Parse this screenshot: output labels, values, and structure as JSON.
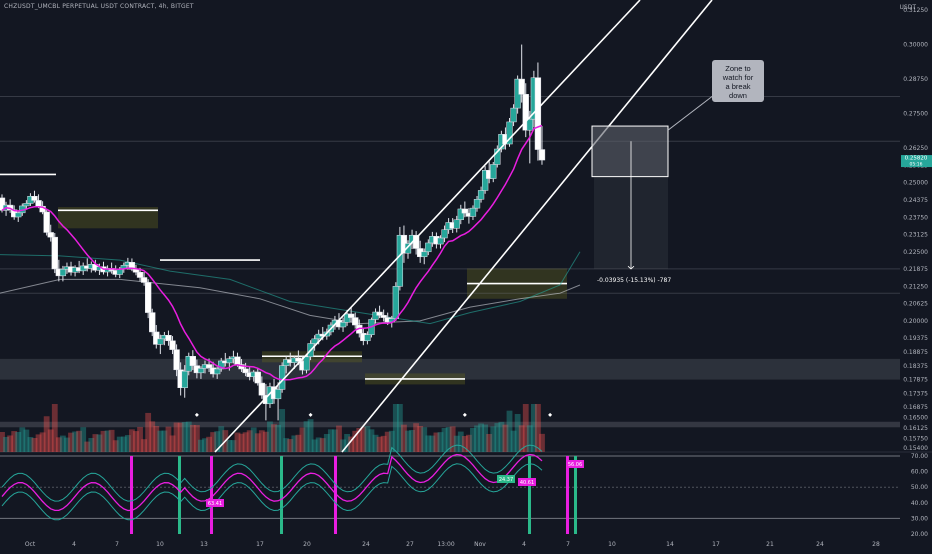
{
  "symbol_title": "CHZUSDT_UMCBL PERPETUAL USDT CONTRACT, 4h, BITGET",
  "currency": "USDT",
  "price_axis_labels": [
    "0.31250",
    "0.30000",
    "0.28750",
    "0.27500",
    "0.26250",
    "0.25625",
    "0.25000",
    "0.24375",
    "0.23750",
    "0.23125",
    "0.22500",
    "0.21875",
    "0.21250",
    "0.20625",
    "0.20000",
    "0.19375",
    "0.18875",
    "0.18375",
    "0.17875",
    "0.17375",
    "0.16875",
    "0.16500",
    "0.16125",
    "0.15750",
    "0.15400"
  ],
  "osc_axis_labels": [
    "70.00",
    "60.00",
    "50.00",
    "40.00",
    "30.00",
    "20.00"
  ],
  "time_axis_labels": [
    "Oct",
    "4",
    "7",
    "10",
    "13",
    "17",
    "20",
    "24",
    "27",
    "13:00",
    "Nov",
    "4",
    "7",
    "10",
    "14",
    "17",
    "21",
    "24",
    "28"
  ],
  "last_price": "0.25820",
  "last_price_sub": "05:16",
  "annotation_text": [
    "Zone to",
    "watch for",
    "a break",
    "down"
  ],
  "measure_label": "-0.03935 (-15.13%) -787",
  "osc_tags": [
    "63.41",
    "24.37",
    "40.61",
    "56.06"
  ],
  "colors": {
    "up": "#26a69a",
    "down": "#ef5350",
    "wick": "#e0e3eb",
    "ma": "#e91ee0",
    "rsi": "#e91ee0",
    "band": "#26a69a",
    "signal_pink": "#e91ee0",
    "signal_green": "#2bb98a"
  },
  "chart_data": {
    "type": "candlestick",
    "price_ylim": [
      0.154,
      0.3125
    ],
    "osc_ylim": [
      20,
      70
    ],
    "osc_lines": [
      70,
      50,
      30
    ],
    "notable": {
      "last_price": 0.2582,
      "target_price": 0.21875,
      "peak": 0.3,
      "support_band": [
        0.17875,
        0.18625
      ]
    },
    "x_range": [
      0,
      150
    ],
    "candles": [
      [
        0.2445,
        0.2458,
        0.2392,
        0.24
      ],
      [
        0.24,
        0.2431,
        0.238,
        0.2419
      ],
      [
        0.2419,
        0.244,
        0.2391,
        0.2402
      ],
      [
        0.2402,
        0.2418,
        0.2366,
        0.2376
      ],
      [
        0.2376,
        0.24,
        0.2358,
        0.2391
      ],
      [
        0.2391,
        0.2425,
        0.238,
        0.2416
      ],
      [
        0.2416,
        0.2437,
        0.2405,
        0.2425
      ],
      [
        0.2425,
        0.2462,
        0.2416,
        0.2451
      ],
      [
        0.2451,
        0.2471,
        0.2428,
        0.2436
      ],
      [
        0.2436,
        0.2458,
        0.2408,
        0.2415
      ],
      [
        0.2415,
        0.2433,
        0.2386,
        0.2394
      ],
      [
        0.2394,
        0.2405,
        0.2309,
        0.232
      ],
      [
        0.232,
        0.2348,
        0.2287,
        0.2303
      ],
      [
        0.2303,
        0.2318,
        0.2173,
        0.2188
      ],
      [
        0.2188,
        0.2221,
        0.2143,
        0.2163
      ],
      [
        0.2163,
        0.2199,
        0.2143,
        0.2187
      ],
      [
        0.2187,
        0.2211,
        0.217,
        0.2196
      ],
      [
        0.2196,
        0.2214,
        0.2164,
        0.2176
      ],
      [
        0.2176,
        0.2201,
        0.2161,
        0.2193
      ],
      [
        0.2193,
        0.2217,
        0.2173,
        0.2181
      ],
      [
        0.2181,
        0.2211,
        0.2166,
        0.2199
      ],
      [
        0.2199,
        0.2226,
        0.2179,
        0.219
      ],
      [
        0.219,
        0.2215,
        0.2175,
        0.2205
      ],
      [
        0.2205,
        0.2221,
        0.2176,
        0.2183
      ],
      [
        0.2183,
        0.2207,
        0.2166,
        0.2196
      ],
      [
        0.2196,
        0.2214,
        0.2168,
        0.2177
      ],
      [
        0.2177,
        0.2201,
        0.2161,
        0.219
      ],
      [
        0.219,
        0.2211,
        0.2171,
        0.2182
      ],
      [
        0.2182,
        0.2201,
        0.2158,
        0.2168
      ],
      [
        0.2168,
        0.2195,
        0.2155,
        0.2188
      ],
      [
        0.2188,
        0.2211,
        0.2174,
        0.2201
      ],
      [
        0.2201,
        0.2228,
        0.2185,
        0.2212
      ],
      [
        0.2212,
        0.2226,
        0.218,
        0.2187
      ],
      [
        0.2187,
        0.2203,
        0.2165,
        0.2176
      ],
      [
        0.2176,
        0.2192,
        0.2143,
        0.2157
      ],
      [
        0.2157,
        0.2177,
        0.2127,
        0.2139
      ],
      [
        0.2139,
        0.2151,
        0.201,
        0.203
      ],
      [
        0.203,
        0.2044,
        0.1945,
        0.196
      ],
      [
        0.196,
        0.1985,
        0.19,
        0.1915
      ],
      [
        0.1915,
        0.195,
        0.188,
        0.1935
      ],
      [
        0.1935,
        0.196,
        0.1912,
        0.1948
      ],
      [
        0.1948,
        0.1965,
        0.191,
        0.1928
      ],
      [
        0.1928,
        0.1945,
        0.188,
        0.1896
      ],
      [
        0.1896,
        0.1915,
        0.18,
        0.1823
      ],
      [
        0.1823,
        0.185,
        0.173,
        0.1758
      ],
      [
        0.1758,
        0.184,
        0.1722,
        0.1818
      ],
      [
        0.1818,
        0.1885,
        0.1803,
        0.1872
      ],
      [
        0.1872,
        0.1894,
        0.1822,
        0.1838
      ],
      [
        0.1838,
        0.186,
        0.1792,
        0.1812
      ],
      [
        0.1812,
        0.1836,
        0.179,
        0.1828
      ],
      [
        0.1828,
        0.1856,
        0.181,
        0.1842
      ],
      [
        0.1842,
        0.1864,
        0.1815,
        0.183
      ],
      [
        0.183,
        0.1852,
        0.1795,
        0.1808
      ],
      [
        0.1808,
        0.1834,
        0.179,
        0.1826
      ],
      [
        0.1826,
        0.1866,
        0.1816,
        0.1855
      ],
      [
        0.1855,
        0.1884,
        0.1835,
        0.1848
      ],
      [
        0.1848,
        0.1872,
        0.182,
        0.1863
      ],
      [
        0.1863,
        0.1892,
        0.1846,
        0.187
      ],
      [
        0.187,
        0.1885,
        0.1834,
        0.1842
      ],
      [
        0.1842,
        0.1862,
        0.1815,
        0.1826
      ],
      [
        0.1826,
        0.1848,
        0.18,
        0.1812
      ],
      [
        0.1812,
        0.1832,
        0.1785,
        0.1798
      ],
      [
        0.1798,
        0.1822,
        0.178,
        0.1815
      ],
      [
        0.1815,
        0.183,
        0.1766,
        0.1775
      ],
      [
        0.1775,
        0.1799,
        0.1718,
        0.1731
      ],
      [
        0.1731,
        0.1772,
        0.164,
        0.17
      ],
      [
        0.17,
        0.1776,
        0.1685,
        0.1762
      ],
      [
        0.1762,
        0.179,
        0.17,
        0.1718
      ],
      [
        0.1718,
        0.1778,
        0.164,
        0.1752
      ],
      [
        0.1752,
        0.185,
        0.174,
        0.1838
      ],
      [
        0.1838,
        0.1872,
        0.181,
        0.186
      ],
      [
        0.186,
        0.1885,
        0.1835,
        0.1849
      ],
      [
        0.1849,
        0.1875,
        0.1826,
        0.1866
      ],
      [
        0.1866,
        0.1893,
        0.184,
        0.1854
      ],
      [
        0.1854,
        0.1872,
        0.1806,
        0.1822
      ],
      [
        0.1822,
        0.188,
        0.181,
        0.187
      ],
      [
        0.187,
        0.193,
        0.1858,
        0.1918
      ],
      [
        0.1918,
        0.1948,
        0.1892,
        0.1935
      ],
      [
        0.1935,
        0.1968,
        0.1915,
        0.1952
      ],
      [
        0.1952,
        0.1978,
        0.193,
        0.1945
      ],
      [
        0.1945,
        0.1972,
        0.1932,
        0.196
      ],
      [
        0.196,
        0.1995,
        0.1948,
        0.1985
      ],
      [
        0.1985,
        0.2018,
        0.1968,
        0.2002
      ],
      [
        0.2002,
        0.2028,
        0.1968,
        0.1978
      ],
      [
        0.1978,
        0.2012,
        0.196,
        0.1995
      ],
      [
        0.1995,
        0.204,
        0.1982,
        0.2025
      ],
      [
        0.2025,
        0.2052,
        0.1995,
        0.2012
      ],
      [
        0.2012,
        0.203,
        0.1972,
        0.1985
      ],
      [
        0.1985,
        0.2005,
        0.194,
        0.1955
      ],
      [
        0.1955,
        0.1975,
        0.1912,
        0.1928
      ],
      [
        0.1928,
        0.1962,
        0.1915,
        0.195
      ],
      [
        0.195,
        0.2012,
        0.194,
        0.2005
      ],
      [
        0.2005,
        0.2045,
        0.199,
        0.2032
      ],
      [
        0.2032,
        0.2055,
        0.201,
        0.202
      ],
      [
        0.202,
        0.2041,
        0.1998,
        0.2012
      ],
      [
        0.2012,
        0.203,
        0.1985,
        0.1996
      ],
      [
        0.1996,
        0.2018,
        0.1976,
        0.2008
      ],
      [
        0.2008,
        0.214,
        0.2,
        0.2125
      ],
      [
        0.2125,
        0.234,
        0.211,
        0.231
      ],
      [
        0.231,
        0.2345,
        0.221,
        0.2245
      ],
      [
        0.2245,
        0.2292,
        0.2225,
        0.228
      ],
      [
        0.228,
        0.233,
        0.226,
        0.231
      ],
      [
        0.231,
        0.2325,
        0.224,
        0.2262
      ],
      [
        0.2262,
        0.229,
        0.221,
        0.2232
      ],
      [
        0.2232,
        0.2262,
        0.2205,
        0.225
      ],
      [
        0.225,
        0.2295,
        0.2238,
        0.2282
      ],
      [
        0.2282,
        0.2322,
        0.2268,
        0.2306
      ],
      [
        0.2306,
        0.232,
        0.2262,
        0.2278
      ],
      [
        0.2278,
        0.231,
        0.2262,
        0.23
      ],
      [
        0.23,
        0.2345,
        0.2285,
        0.233
      ],
      [
        0.233,
        0.2372,
        0.2315,
        0.2356
      ],
      [
        0.2356,
        0.2372,
        0.2318,
        0.2335
      ],
      [
        0.2335,
        0.238,
        0.232,
        0.2366
      ],
      [
        0.2366,
        0.242,
        0.235,
        0.2405
      ],
      [
        0.2405,
        0.2432,
        0.2375,
        0.239
      ],
      [
        0.239,
        0.2408,
        0.2352,
        0.2378
      ],
      [
        0.2378,
        0.2418,
        0.2365,
        0.2408
      ],
      [
        0.2408,
        0.2452,
        0.2395,
        0.244
      ],
      [
        0.244,
        0.2486,
        0.2428,
        0.2472
      ],
      [
        0.2472,
        0.256,
        0.246,
        0.2545
      ],
      [
        0.2545,
        0.2578,
        0.2498,
        0.2515
      ],
      [
        0.2515,
        0.2575,
        0.2502,
        0.2566
      ],
      [
        0.2566,
        0.2635,
        0.2555,
        0.2622
      ],
      [
        0.2622,
        0.2688,
        0.261,
        0.2675
      ],
      [
        0.2675,
        0.27,
        0.262,
        0.264
      ],
      [
        0.264,
        0.2734,
        0.263,
        0.272
      ],
      [
        0.272,
        0.2784,
        0.2705,
        0.277
      ],
      [
        0.277,
        0.2888,
        0.275,
        0.2875
      ],
      [
        0.2875,
        0.3,
        0.279,
        0.282
      ],
      [
        0.282,
        0.286,
        0.2665,
        0.269
      ],
      [
        0.269,
        0.276,
        0.257,
        0.273
      ],
      [
        0.273,
        0.2905,
        0.27,
        0.288
      ],
      [
        0.288,
        0.2935,
        0.258,
        0.262
      ],
      [
        0.262,
        0.2705,
        0.2565,
        0.2582
      ]
    ]
  }
}
